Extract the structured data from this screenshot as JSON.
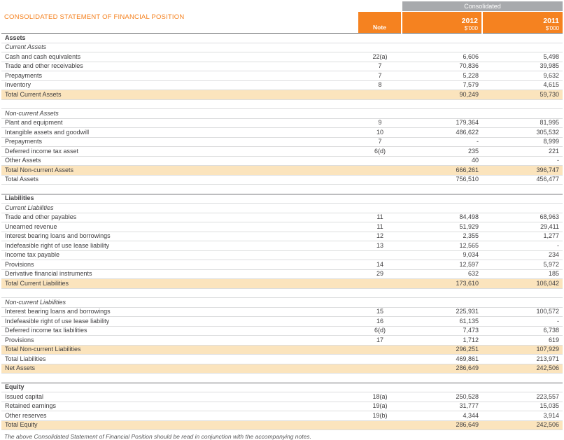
{
  "page": {
    "title": "CONSOLIDATED STATEMENT OF FINANCIAL POSITION",
    "footnote": "The above Consolidated Statement of Financial Position should be read in conjunction with the accompanying notes."
  },
  "colors": {
    "accent_orange": "#F58220",
    "band_gray": "#A8AAAD",
    "highlight_beige": "#FBE4BD",
    "text": "#414042"
  },
  "header": {
    "group_label": "Consolidated",
    "note_label": "Note",
    "columns": [
      {
        "year": "2012",
        "unit": "$'000"
      },
      {
        "year": "2011",
        "unit": "$'000"
      }
    ]
  },
  "table": {
    "rows": [
      {
        "type": "section",
        "label": "Assets",
        "note": "",
        "y2012": "",
        "y2011": ""
      },
      {
        "type": "subsection",
        "label": "Current Assets",
        "note": "",
        "y2012": "",
        "y2011": ""
      },
      {
        "type": "data",
        "label": "Cash and cash equivalents",
        "note": "22(a)",
        "y2012": "6,606",
        "y2011": "5,498"
      },
      {
        "type": "data",
        "label": "Trade and other receivables",
        "note": "7",
        "y2012": "70,836",
        "y2011": "39,985"
      },
      {
        "type": "data",
        "label": "Prepayments",
        "note": "7",
        "y2012": "5,228",
        "y2011": "9,632"
      },
      {
        "type": "data",
        "label": "Inventory",
        "note": "8",
        "y2012": "7,579",
        "y2011": "4,615"
      },
      {
        "type": "total",
        "label": "Total Current Assets",
        "note": "",
        "y2012": "90,249",
        "y2011": "59,730"
      },
      {
        "type": "spacer",
        "label": "",
        "note": "",
        "y2012": "",
        "y2011": ""
      },
      {
        "type": "subsection",
        "label": "Non-current Assets",
        "note": "",
        "y2012": "",
        "y2011": ""
      },
      {
        "type": "data",
        "label": "Plant and equipment",
        "note": "9",
        "y2012": "179,364",
        "y2011": "81,995"
      },
      {
        "type": "data",
        "label": "Intangible assets and goodwill",
        "note": "10",
        "y2012": "486,622",
        "y2011": "305,532"
      },
      {
        "type": "data",
        "label": "Prepayments",
        "note": "7",
        "y2012": "-",
        "y2011": "8,999"
      },
      {
        "type": "data",
        "label": "Deferred income tax asset",
        "note": "6(d)",
        "y2012": "235",
        "y2011": "221"
      },
      {
        "type": "data",
        "label": "Other Assets",
        "note": "",
        "y2012": "40",
        "y2011": "-"
      },
      {
        "type": "total",
        "label": "Total Non-current Assets",
        "note": "",
        "y2012": "666,261",
        "y2011": "396,747"
      },
      {
        "type": "data",
        "label": "Total Assets",
        "note": "",
        "y2012": "756,510",
        "y2011": "456,477"
      },
      {
        "type": "spacer",
        "label": "",
        "note": "",
        "y2012": "",
        "y2011": ""
      },
      {
        "type": "section",
        "label": "Liabilities",
        "note": "",
        "y2012": "",
        "y2011": ""
      },
      {
        "type": "subsection",
        "label": "Current Liabilities",
        "note": "",
        "y2012": "",
        "y2011": ""
      },
      {
        "type": "data",
        "label": "Trade and other payables",
        "note": "11",
        "y2012": "84,498",
        "y2011": "68,963"
      },
      {
        "type": "data",
        "label": "Unearned revenue",
        "note": "11",
        "y2012": "51,929",
        "y2011": "29,411"
      },
      {
        "type": "data",
        "label": "Interest bearing loans and borrowings",
        "note": "12",
        "y2012": "2,355",
        "y2011": "1,277"
      },
      {
        "type": "data",
        "label": "Indefeasible right of use lease liability",
        "note": "13",
        "y2012": "12,565",
        "y2011": "-"
      },
      {
        "type": "data",
        "label": "Income tax payable",
        "note": "",
        "y2012": "9,034",
        "y2011": "234"
      },
      {
        "type": "data",
        "label": "Provisions",
        "note": "14",
        "y2012": "12,597",
        "y2011": "5,972"
      },
      {
        "type": "data",
        "label": "Derivative financial instruments",
        "note": "29",
        "y2012": "632",
        "y2011": "185"
      },
      {
        "type": "total",
        "label": "Total Current Liabilities",
        "note": "",
        "y2012": "173,610",
        "y2011": "106,042"
      },
      {
        "type": "spacer",
        "label": "",
        "note": "",
        "y2012": "",
        "y2011": ""
      },
      {
        "type": "subsection",
        "label": "Non-current Liabilities",
        "note": "",
        "y2012": "",
        "y2011": ""
      },
      {
        "type": "data",
        "label": "Interest bearing loans and borrowings",
        "note": "15",
        "y2012": "225,931",
        "y2011": "100,572"
      },
      {
        "type": "data",
        "label": "Indefeasible right of use lease liability",
        "note": "16",
        "y2012": "61,135",
        "y2011": "-"
      },
      {
        "type": "data",
        "label": "Deferred income tax liabilities",
        "note": "6(d)",
        "y2012": "7,473",
        "y2011": "6,738"
      },
      {
        "type": "data",
        "label": "Provisions",
        "note": "17",
        "y2012": "1,712",
        "y2011": "619"
      },
      {
        "type": "total",
        "label": "Total Non-current Liabilities",
        "note": "",
        "y2012": "296,251",
        "y2011": "107,929"
      },
      {
        "type": "data",
        "label": "Total Liabilities",
        "note": "",
        "y2012": "469,861",
        "y2011": "213,971"
      },
      {
        "type": "total",
        "label": "Net Assets",
        "note": "",
        "y2012": "286,649",
        "y2011": "242,506"
      },
      {
        "type": "spacer",
        "label": "",
        "note": "",
        "y2012": "",
        "y2011": ""
      },
      {
        "type": "section",
        "label": "Equity",
        "note": "",
        "y2012": "",
        "y2011": ""
      },
      {
        "type": "data",
        "label": "Issued capital",
        "note": "18(a)",
        "y2012": "250,528",
        "y2011": "223,557"
      },
      {
        "type": "data",
        "label": "Retained earnings",
        "note": "19(a)",
        "y2012": "31,777",
        "y2011": "15,035"
      },
      {
        "type": "data",
        "label": "Other reserves",
        "note": "19(b)",
        "y2012": "4,344",
        "y2011": "3,914"
      },
      {
        "type": "total",
        "label": "Total Equity",
        "note": "",
        "y2012": "286,649",
        "y2011": "242,506"
      }
    ]
  }
}
